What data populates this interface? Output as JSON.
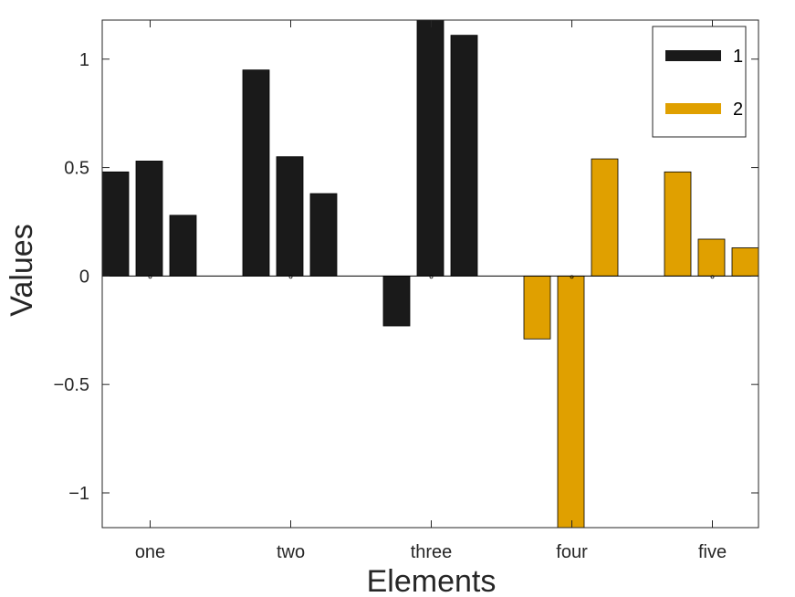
{
  "chart_data": {
    "type": "bar",
    "xlabel": "Elements",
    "ylabel": "Values",
    "categories": [
      "one",
      "two",
      "three",
      "four",
      "five"
    ],
    "ylim": [
      -1.16,
      1.18
    ],
    "yticks": [
      1,
      0.5,
      0,
      -0.5,
      -1
    ],
    "ytick_labels": [
      "1",
      "0.5",
      "0",
      "−0.5",
      "−1"
    ],
    "series_colors": {
      "1": "#1a1a1a",
      "2": "#e0a000"
    },
    "bars": [
      {
        "category": "one",
        "series": "1",
        "value": 0.48
      },
      {
        "category": "one",
        "series": "1",
        "value": 0.53
      },
      {
        "category": "one",
        "series": "1",
        "value": 0.28
      },
      {
        "category": "two",
        "series": "1",
        "value": 0.95
      },
      {
        "category": "two",
        "series": "1",
        "value": 0.55
      },
      {
        "category": "two",
        "series": "1",
        "value": 0.38
      },
      {
        "category": "three",
        "series": "1",
        "value": -0.23
      },
      {
        "category": "three",
        "series": "1",
        "value": 1.18
      },
      {
        "category": "three",
        "series": "1",
        "value": 1.11
      },
      {
        "category": "four",
        "series": "2",
        "value": -0.29
      },
      {
        "category": "four",
        "series": "2",
        "value": -1.16
      },
      {
        "category": "four",
        "series": "2",
        "value": 0.54
      },
      {
        "category": "five",
        "series": "2",
        "value": 0.48
      },
      {
        "category": "five",
        "series": "2",
        "value": 0.17
      },
      {
        "category": "five",
        "series": "2",
        "value": 0.13
      }
    ],
    "legend": {
      "position": "top-right",
      "entries": [
        "1",
        "2"
      ]
    },
    "grid": false
  }
}
